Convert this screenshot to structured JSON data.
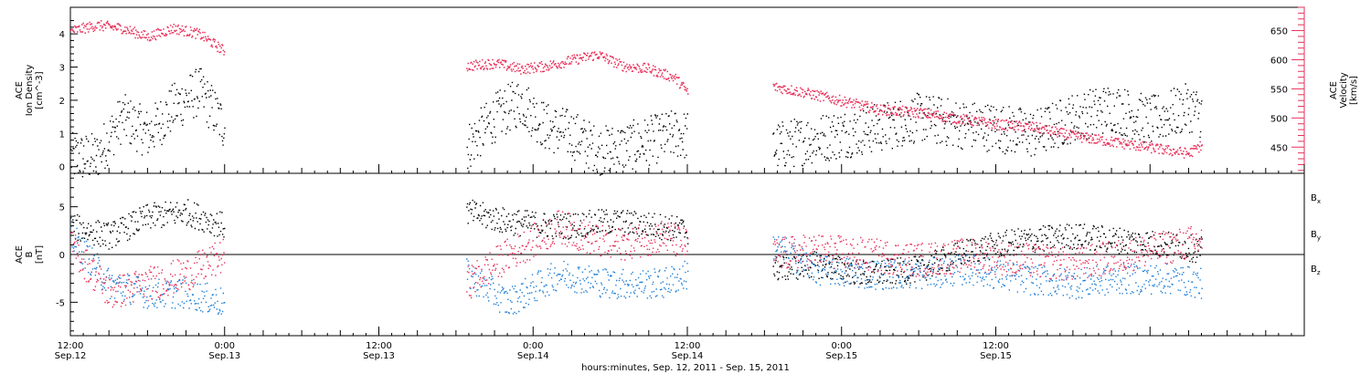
{
  "footer_label": "hours:minutes, Sep. 12, 2011 - Sep. 15, 2011",
  "colors": {
    "black": "#000000",
    "pink": "#e8305a",
    "blue": "#1f7fd6"
  },
  "chart_data": [
    {
      "type": "scatter",
      "panel": "top",
      "ylabel_left": "ACE",
      "ylabel_left_2": "Ion Density",
      "ylabel_left_unit": "[cm^-3]",
      "ylabel_right": "ACE",
      "ylabel_right_2": "Velocity",
      "ylabel_right_unit": "[km/s]",
      "ylim_left": [
        -0.2,
        4.8
      ],
      "ylim_right": [
        405,
        690
      ],
      "yticks_left": [
        0,
        1,
        2,
        3,
        4
      ],
      "yticks_right": [
        450,
        500,
        550,
        600,
        650
      ],
      "data_gaps_hours": [
        [
          12.0,
          30.8
        ],
        [
          48.0,
          54.6
        ]
      ],
      "series": [
        {
          "axis": "left",
          "color": "#000000",
          "x_hours": [
            0,
            2,
            4,
            6,
            8,
            10,
            12,
            14,
            16,
            18,
            20,
            22,
            24,
            30.8,
            33,
            35,
            37,
            39,
            41,
            43,
            45,
            47,
            54.6,
            57,
            60,
            63,
            66,
            69,
            72,
            75,
            78,
            81,
            84,
            87,
            88
          ],
          "y": [
            0.3,
            0.3,
            1.5,
            1.0,
            1.8,
            2.3,
            1.2,
            0.6,
            1.0,
            1.0,
            0.5,
            0.5,
            1.0,
            0.6,
            1.5,
            2.0,
            1.2,
            1.0,
            0.5,
            0.6,
            0.8,
            1.0,
            0.6,
            0.8,
            1.0,
            1.2,
            1.5,
            1.3,
            1.2,
            1.0,
            1.5,
            1.8,
            1.4,
            1.8,
            1.6
          ]
        },
        {
          "axis": "right",
          "color": "#e8305a",
          "x_hours": [
            0,
            2,
            4,
            6,
            8,
            10,
            12,
            14,
            16,
            18,
            20,
            22,
            24,
            30.8,
            33,
            35,
            37,
            39,
            41,
            43,
            45,
            47,
            48,
            54.6,
            57,
            60,
            63,
            66,
            69,
            72,
            75,
            78,
            81,
            84,
            87,
            88
          ],
          "y": [
            650,
            660,
            655,
            640,
            655,
            645,
            615,
            605,
            600,
            590,
            610,
            595,
            590,
            590,
            595,
            585,
            590,
            600,
            610,
            590,
            585,
            570,
            545,
            555,
            545,
            530,
            515,
            510,
            500,
            490,
            485,
            470,
            460,
            450,
            440,
            455
          ]
        }
      ]
    },
    {
      "type": "scatter",
      "panel": "bottom",
      "ylabel": "ACE",
      "ylabel_2": "B",
      "ylabel_unit": "[nT]",
      "ylim": [
        -8.5,
        8.5
      ],
      "yticks": [
        -5,
        0,
        5
      ],
      "zero_line": true,
      "data_gaps_hours": [
        [
          12.0,
          30.8
        ],
        [
          48.0,
          54.6
        ]
      ],
      "legend": [
        {
          "name": "Bx",
          "base": "B",
          "sub": "x",
          "color": "#000000"
        },
        {
          "name": "By",
          "base": "B",
          "sub": "y",
          "color": "#1f7fd6"
        },
        {
          "name": "Bz",
          "base": "B",
          "sub": "z",
          "color": "#e8305a"
        }
      ],
      "series": [
        {
          "name": "Bx",
          "color": "#000000",
          "x_hours": [
            0,
            3,
            6,
            9,
            12,
            30.8,
            34,
            38,
            42,
            46,
            48,
            54.6,
            58,
            62,
            66,
            70,
            74,
            78,
            82,
            86,
            88
          ],
          "y": [
            3,
            2,
            4,
            4.5,
            3,
            4.5,
            3.5,
            3,
            3.5,
            3,
            2.5,
            -1.5,
            -1,
            -2,
            -1.5,
            0.5,
            1.5,
            2,
            1.5,
            1,
            0.5
          ]
        },
        {
          "name": "By",
          "color": "#1f7fd6",
          "x_hours": [
            0,
            3,
            6,
            9,
            12,
            30.8,
            34,
            38,
            42,
            46,
            48,
            54.6,
            58,
            62,
            66,
            70,
            74,
            78,
            82,
            86,
            88
          ],
          "y": [
            2,
            -3,
            -4,
            -4,
            -5,
            -2,
            -5,
            -2,
            -3,
            -3,
            -2,
            1,
            -1.5,
            -2,
            -2,
            -1.5,
            -2.5,
            -3,
            -2.5,
            -2.5,
            -3
          ]
        },
        {
          "name": "Bz",
          "color": "#e8305a",
          "x_hours": [
            0,
            3,
            6,
            9,
            12,
            30.8,
            34,
            38,
            42,
            46,
            48,
            54.6,
            58,
            62,
            66,
            70,
            74,
            78,
            82,
            86,
            88
          ],
          "y": [
            1,
            -4,
            -3,
            -2,
            0,
            -3,
            0,
            3,
            1,
            2,
            1,
            0,
            0.5,
            0,
            -0.5,
            0,
            -0.5,
            -1,
            0,
            1,
            1.5
          ]
        }
      ]
    }
  ],
  "x_axis": {
    "xlim_hours": [
      0,
      96
    ],
    "tick_labels": [
      {
        "hours": 0,
        "time": "12:00",
        "date": "Sep.12"
      },
      {
        "hours": 12,
        "time": "0:00",
        "date": "Sep.13"
      },
      {
        "hours": 24,
        "time": "12:00",
        "date": "Sep.13"
      },
      {
        "hours": 36,
        "time": "0:00",
        "date": "Sep.14"
      },
      {
        "hours": 48,
        "time": "12:00",
        "date": "Sep.14"
      },
      {
        "hours": 60,
        "time": "0:00",
        "date": "Sep.15"
      },
      {
        "hours": 72,
        "time": "12:00",
        "date": "Sep.15"
      }
    ]
  }
}
